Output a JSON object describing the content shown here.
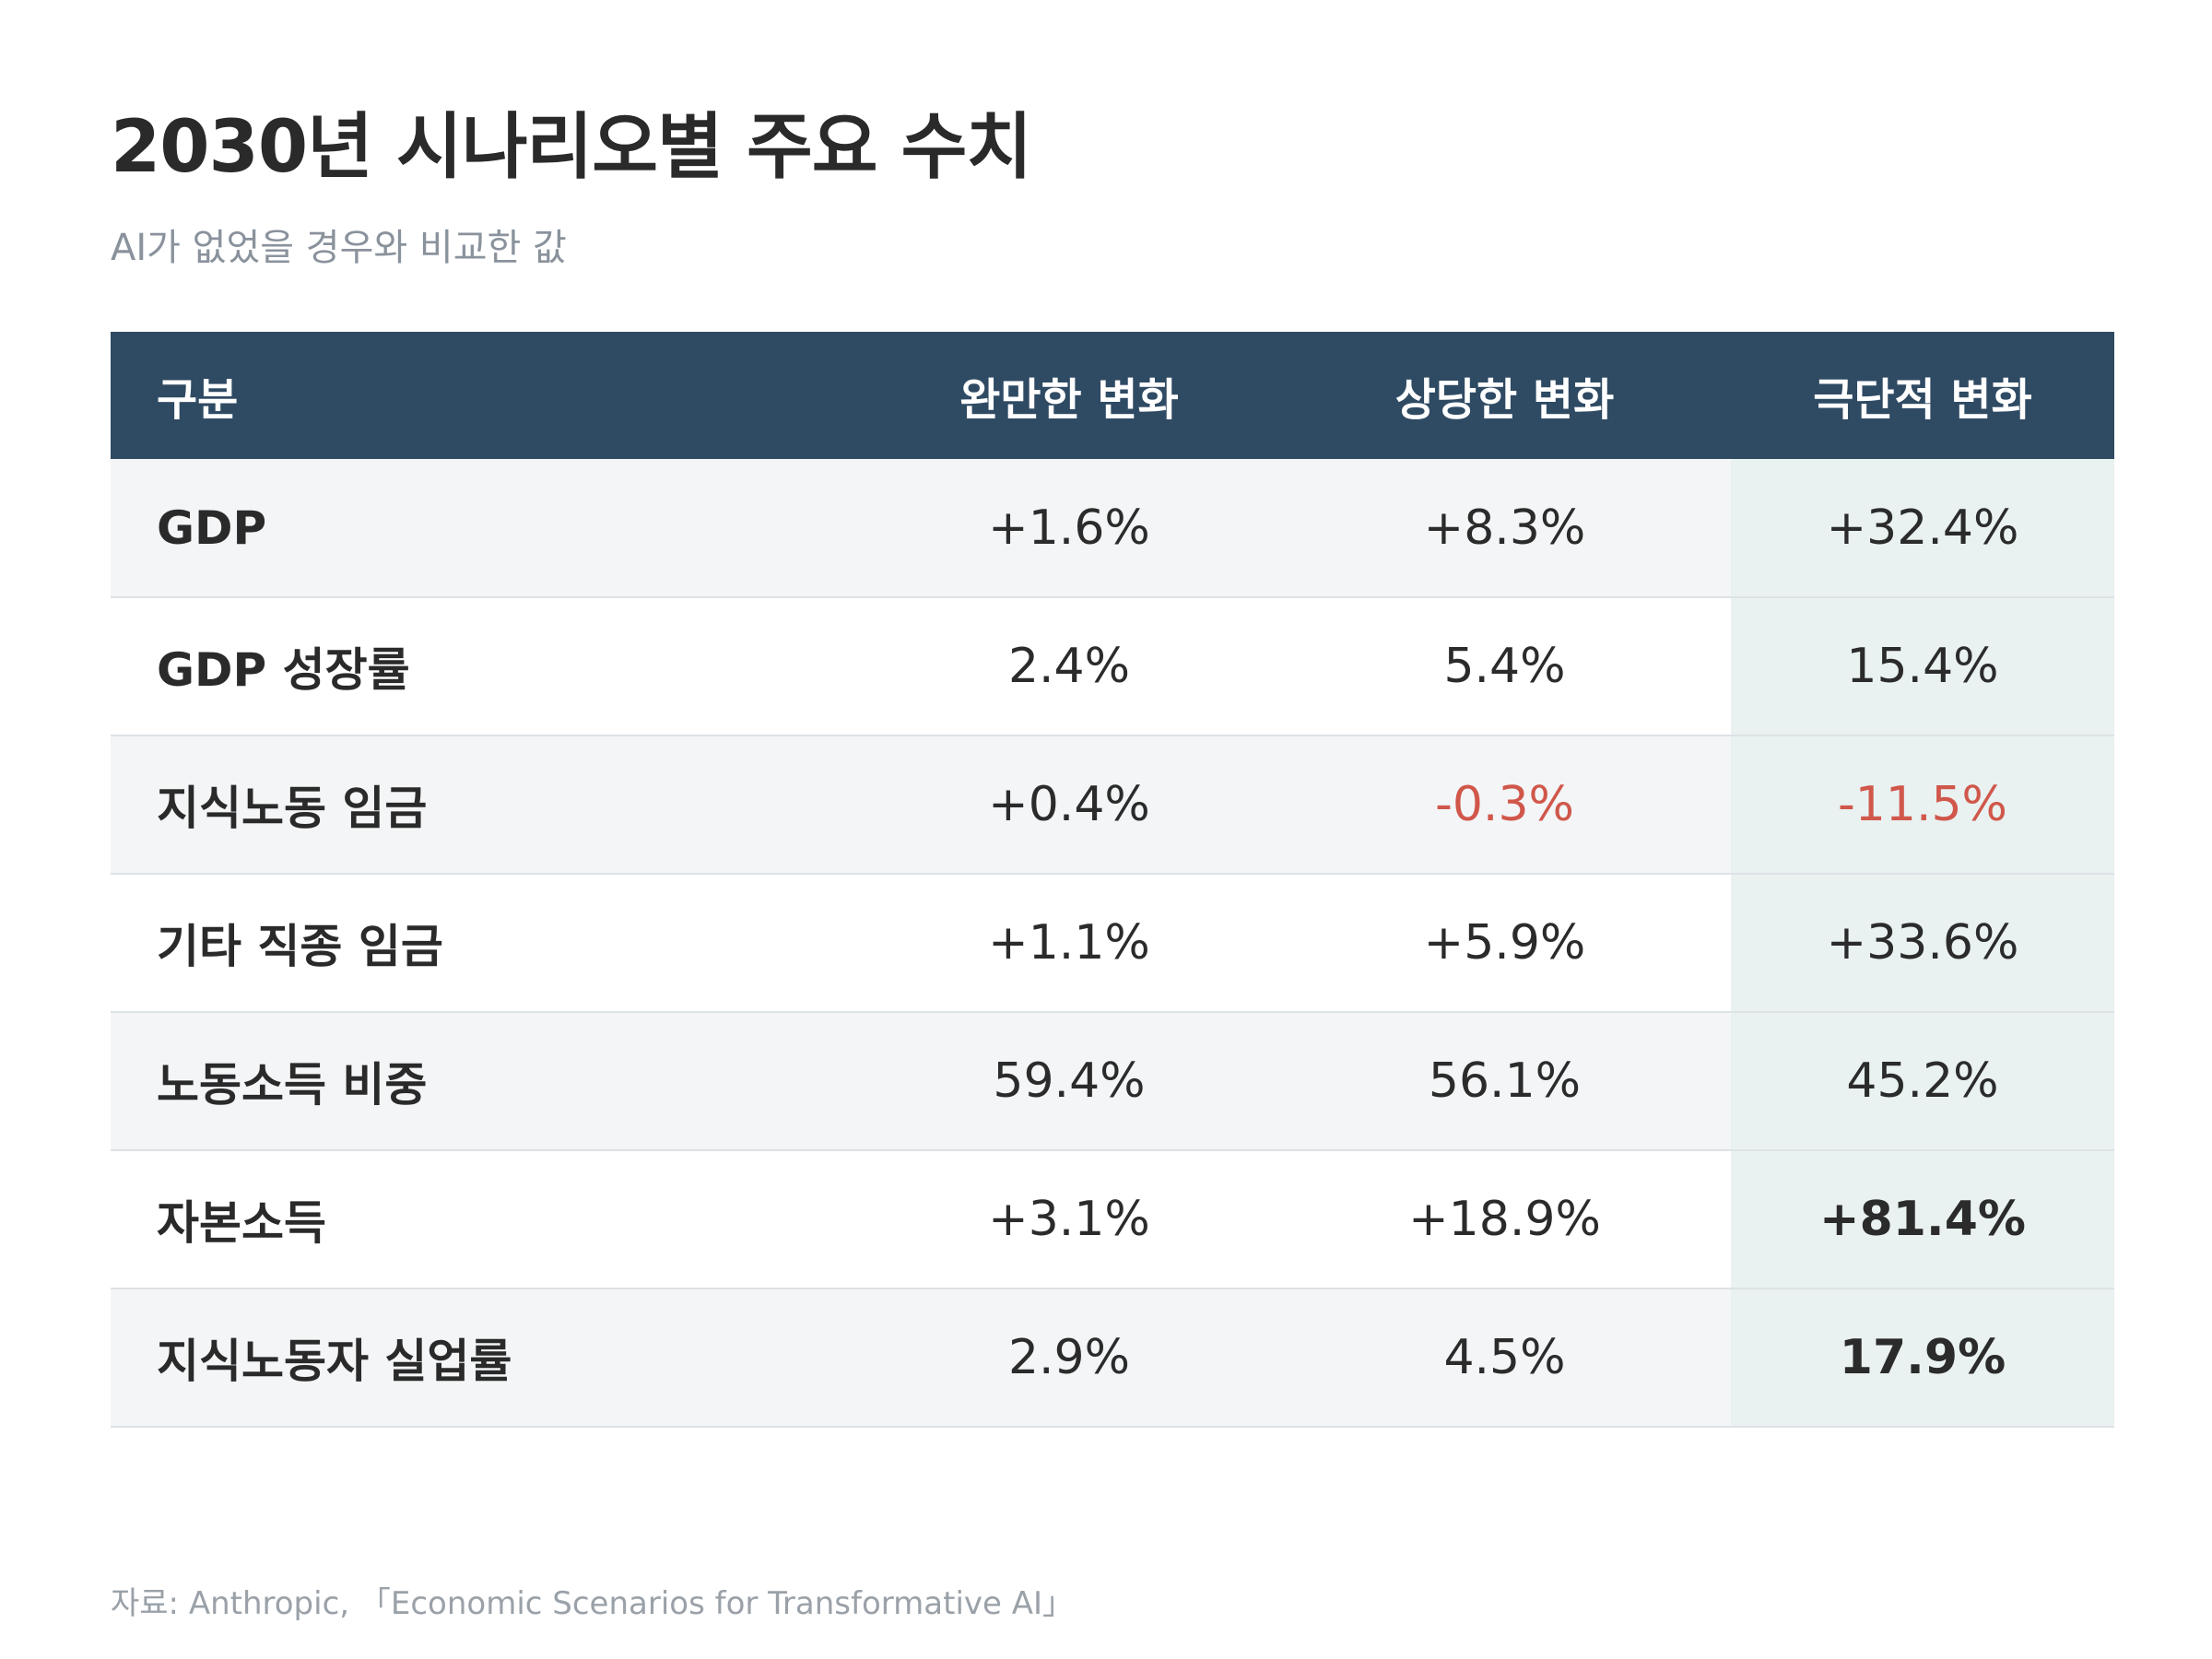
{
  "title": "2030년 시나리오별 주요 수치",
  "subtitle": "AI가 없었을 경우와 비교한 값",
  "colors": {
    "header_bg": "#2f4a63",
    "negative": "#d0574a",
    "highlight_column": "#e9f1f1",
    "row_stripe": "#f3f5f7"
  },
  "table": {
    "headers": [
      "구분",
      "완만한 변화",
      "상당한 변화",
      "극단적 변화"
    ],
    "rows": [
      {
        "label": "GDP",
        "values": [
          "+1.6%",
          "+8.3%",
          "+32.4%"
        ]
      },
      {
        "label": "GDP 성장률",
        "values": [
          "2.4%",
          "5.4%",
          "15.4%"
        ]
      },
      {
        "label": "지식노동 임금",
        "values": [
          "+0.4%",
          "-0.3%",
          "-11.5%"
        ]
      },
      {
        "label": "기타 직종 임금",
        "values": [
          "+1.1%",
          "+5.9%",
          "+33.6%"
        ]
      },
      {
        "label": "노동소득 비중",
        "values": [
          "59.4%",
          "56.1%",
          "45.2%"
        ]
      },
      {
        "label": "자본소득",
        "values": [
          "+3.1%",
          "+18.9%",
          "+81.4%"
        ]
      },
      {
        "label": "지식노동자 실업률",
        "values": [
          "2.9%",
          "4.5%",
          "17.9%"
        ]
      }
    ]
  },
  "source": "자료: Anthropic, 「Economic Scenarios for Transformative AI」"
}
